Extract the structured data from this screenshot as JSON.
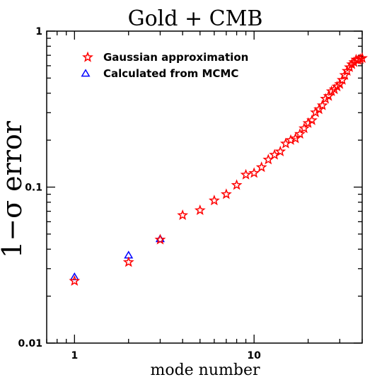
{
  "chart_data": {
    "type": "scatter",
    "title": "Gold + CMB",
    "xlabel": "mode number",
    "ylabel": "1−σ error",
    "x_scale": "log",
    "y_scale": "log",
    "xlim": [
      0.7,
      40
    ],
    "ylim": [
      0.01,
      1
    ],
    "x_tick_labels": [
      {
        "value": 1,
        "label": "1"
      },
      {
        "value": 10,
        "label": "10"
      }
    ],
    "y_tick_labels": [
      {
        "value": 0.01,
        "label": "0.01"
      },
      {
        "value": 0.1,
        "label": "0.1"
      },
      {
        "value": 1,
        "label": "1"
      }
    ],
    "legend_position": "top-left",
    "series": [
      {
        "name": "Gaussian approximation",
        "marker": "star",
        "color": "#ff0000",
        "x": [
          1,
          2,
          3,
          4,
          5,
          6,
          7,
          8,
          9,
          10,
          11,
          12,
          13,
          14,
          15,
          16,
          17,
          18,
          19,
          20,
          21,
          22,
          23,
          24,
          25,
          26,
          27,
          28,
          29,
          30,
          31,
          32,
          33,
          34,
          35,
          36,
          37,
          38,
          39,
          40
        ],
        "y": [
          0.025,
          0.033,
          0.046,
          0.066,
          0.071,
          0.082,
          0.09,
          0.103,
          0.12,
          0.123,
          0.134,
          0.15,
          0.161,
          0.169,
          0.19,
          0.2,
          0.205,
          0.219,
          0.238,
          0.257,
          0.268,
          0.301,
          0.315,
          0.334,
          0.368,
          0.383,
          0.411,
          0.423,
          0.441,
          0.457,
          0.486,
          0.522,
          0.555,
          0.586,
          0.612,
          0.632,
          0.656,
          0.652,
          0.662,
          0.671
        ]
      },
      {
        "name": "Calculated from MCMC",
        "marker": "triangle",
        "color": "#0000ff",
        "x": [
          1,
          2,
          3
        ],
        "y": [
          0.0265,
          0.0365,
          0.0465
        ]
      }
    ]
  }
}
